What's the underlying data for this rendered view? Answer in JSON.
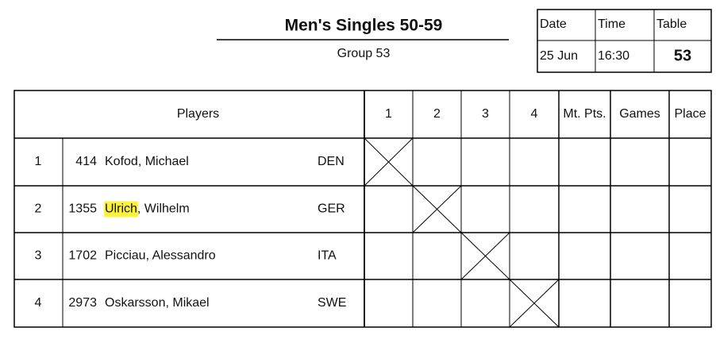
{
  "header": {
    "title": "Men's Singles 50-59",
    "subtitle": "Group 53"
  },
  "info": {
    "labels": [
      "Date",
      "Time",
      "Table"
    ],
    "values": [
      "25 Jun",
      "16:30",
      "53"
    ]
  },
  "table": {
    "columns": [
      "Players",
      "1",
      "2",
      "3",
      "4",
      "Mt. Pts.",
      "Games",
      "Place"
    ],
    "rows": [
      {
        "index": "1",
        "id": "414",
        "name_parts": [
          "Kofod",
          ", Michael"
        ],
        "highlight": false,
        "country": "DEN"
      },
      {
        "index": "2",
        "id": "1355",
        "name_parts": [
          "Ulrich",
          ", Wilhelm"
        ],
        "highlight": true,
        "country": "GER"
      },
      {
        "index": "3",
        "id": "1702",
        "name_parts": [
          "Picciau",
          ", Alessandro"
        ],
        "highlight": false,
        "country": "ITA"
      },
      {
        "index": "4",
        "id": "2973",
        "name_parts": [
          "Oskarsson",
          ", Mikael"
        ],
        "highlight": false,
        "country": "SWE"
      }
    ]
  }
}
